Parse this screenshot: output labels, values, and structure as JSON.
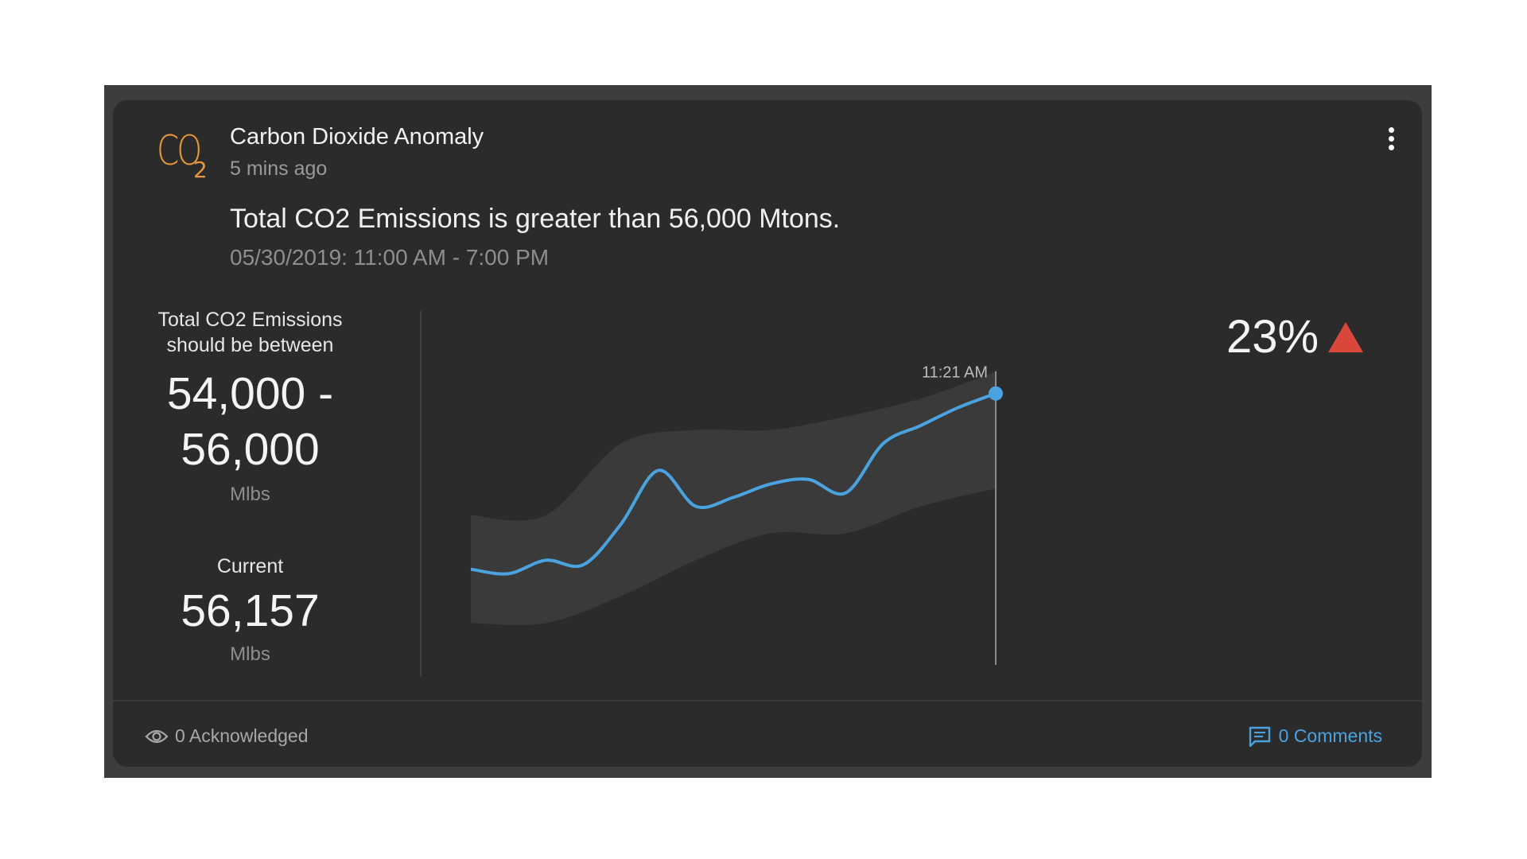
{
  "alert": {
    "icon": "co2-icon",
    "icon_text": "CO",
    "icon_subscript": "2",
    "title": "Carbon Dioxide Anomaly",
    "time_ago": "5 mins ago",
    "message": "Total CO2 Emissions is greater than 56,000 Mtons.",
    "time_range": "05/30/2019: 11:00 AM - 7:00 PM",
    "menu_icon": "more-vertical-icon"
  },
  "expected": {
    "label_line1": "Total CO2 Emissions",
    "label_line2": "should be between",
    "range_line1": "54,000 -",
    "range_line2": "56,000",
    "unit": "Mlbs"
  },
  "current": {
    "label": "Current",
    "value": "56,157",
    "unit": "Mlbs"
  },
  "change": {
    "percent": "23%",
    "direction_icon": "triangle-up-icon",
    "color": "#d9473b"
  },
  "footer": {
    "acknowledged_icon": "eye-icon",
    "acknowledged": "0 Acknowledged",
    "comments_icon": "comment-icon",
    "comments": "0 Comments",
    "comments_color": "#4aa3df"
  },
  "chart_data": {
    "type": "line",
    "marker_label": "11:21 AM",
    "line_color": "#4aa3df",
    "band_color": "#3a3a3a",
    "series": [
      {
        "name": "",
        "x": [
          0,
          0.5,
          1,
          1.5,
          2,
          2.5,
          3,
          3.5,
          4,
          4.5,
          5,
          5.5,
          6,
          6.5,
          7
        ],
        "values": [
          54200,
          54150,
          54300,
          54250,
          54700,
          55300,
          54900,
          55000,
          55150,
          55200,
          55050,
          55600,
          55800,
          56000,
          56157
        ]
      }
    ],
    "band": {
      "x": [
        0,
        1,
        2,
        3,
        4,
        5,
        6,
        7
      ],
      "lower": [
        53600,
        53600,
        53900,
        54300,
        54600,
        54600,
        54900,
        55100
      ],
      "upper": [
        54800,
        54800,
        55600,
        55750,
        55750,
        55900,
        56100,
        56400
      ]
    },
    "ylim": [
      53400,
      56500
    ],
    "grid": false,
    "legend": "none"
  }
}
